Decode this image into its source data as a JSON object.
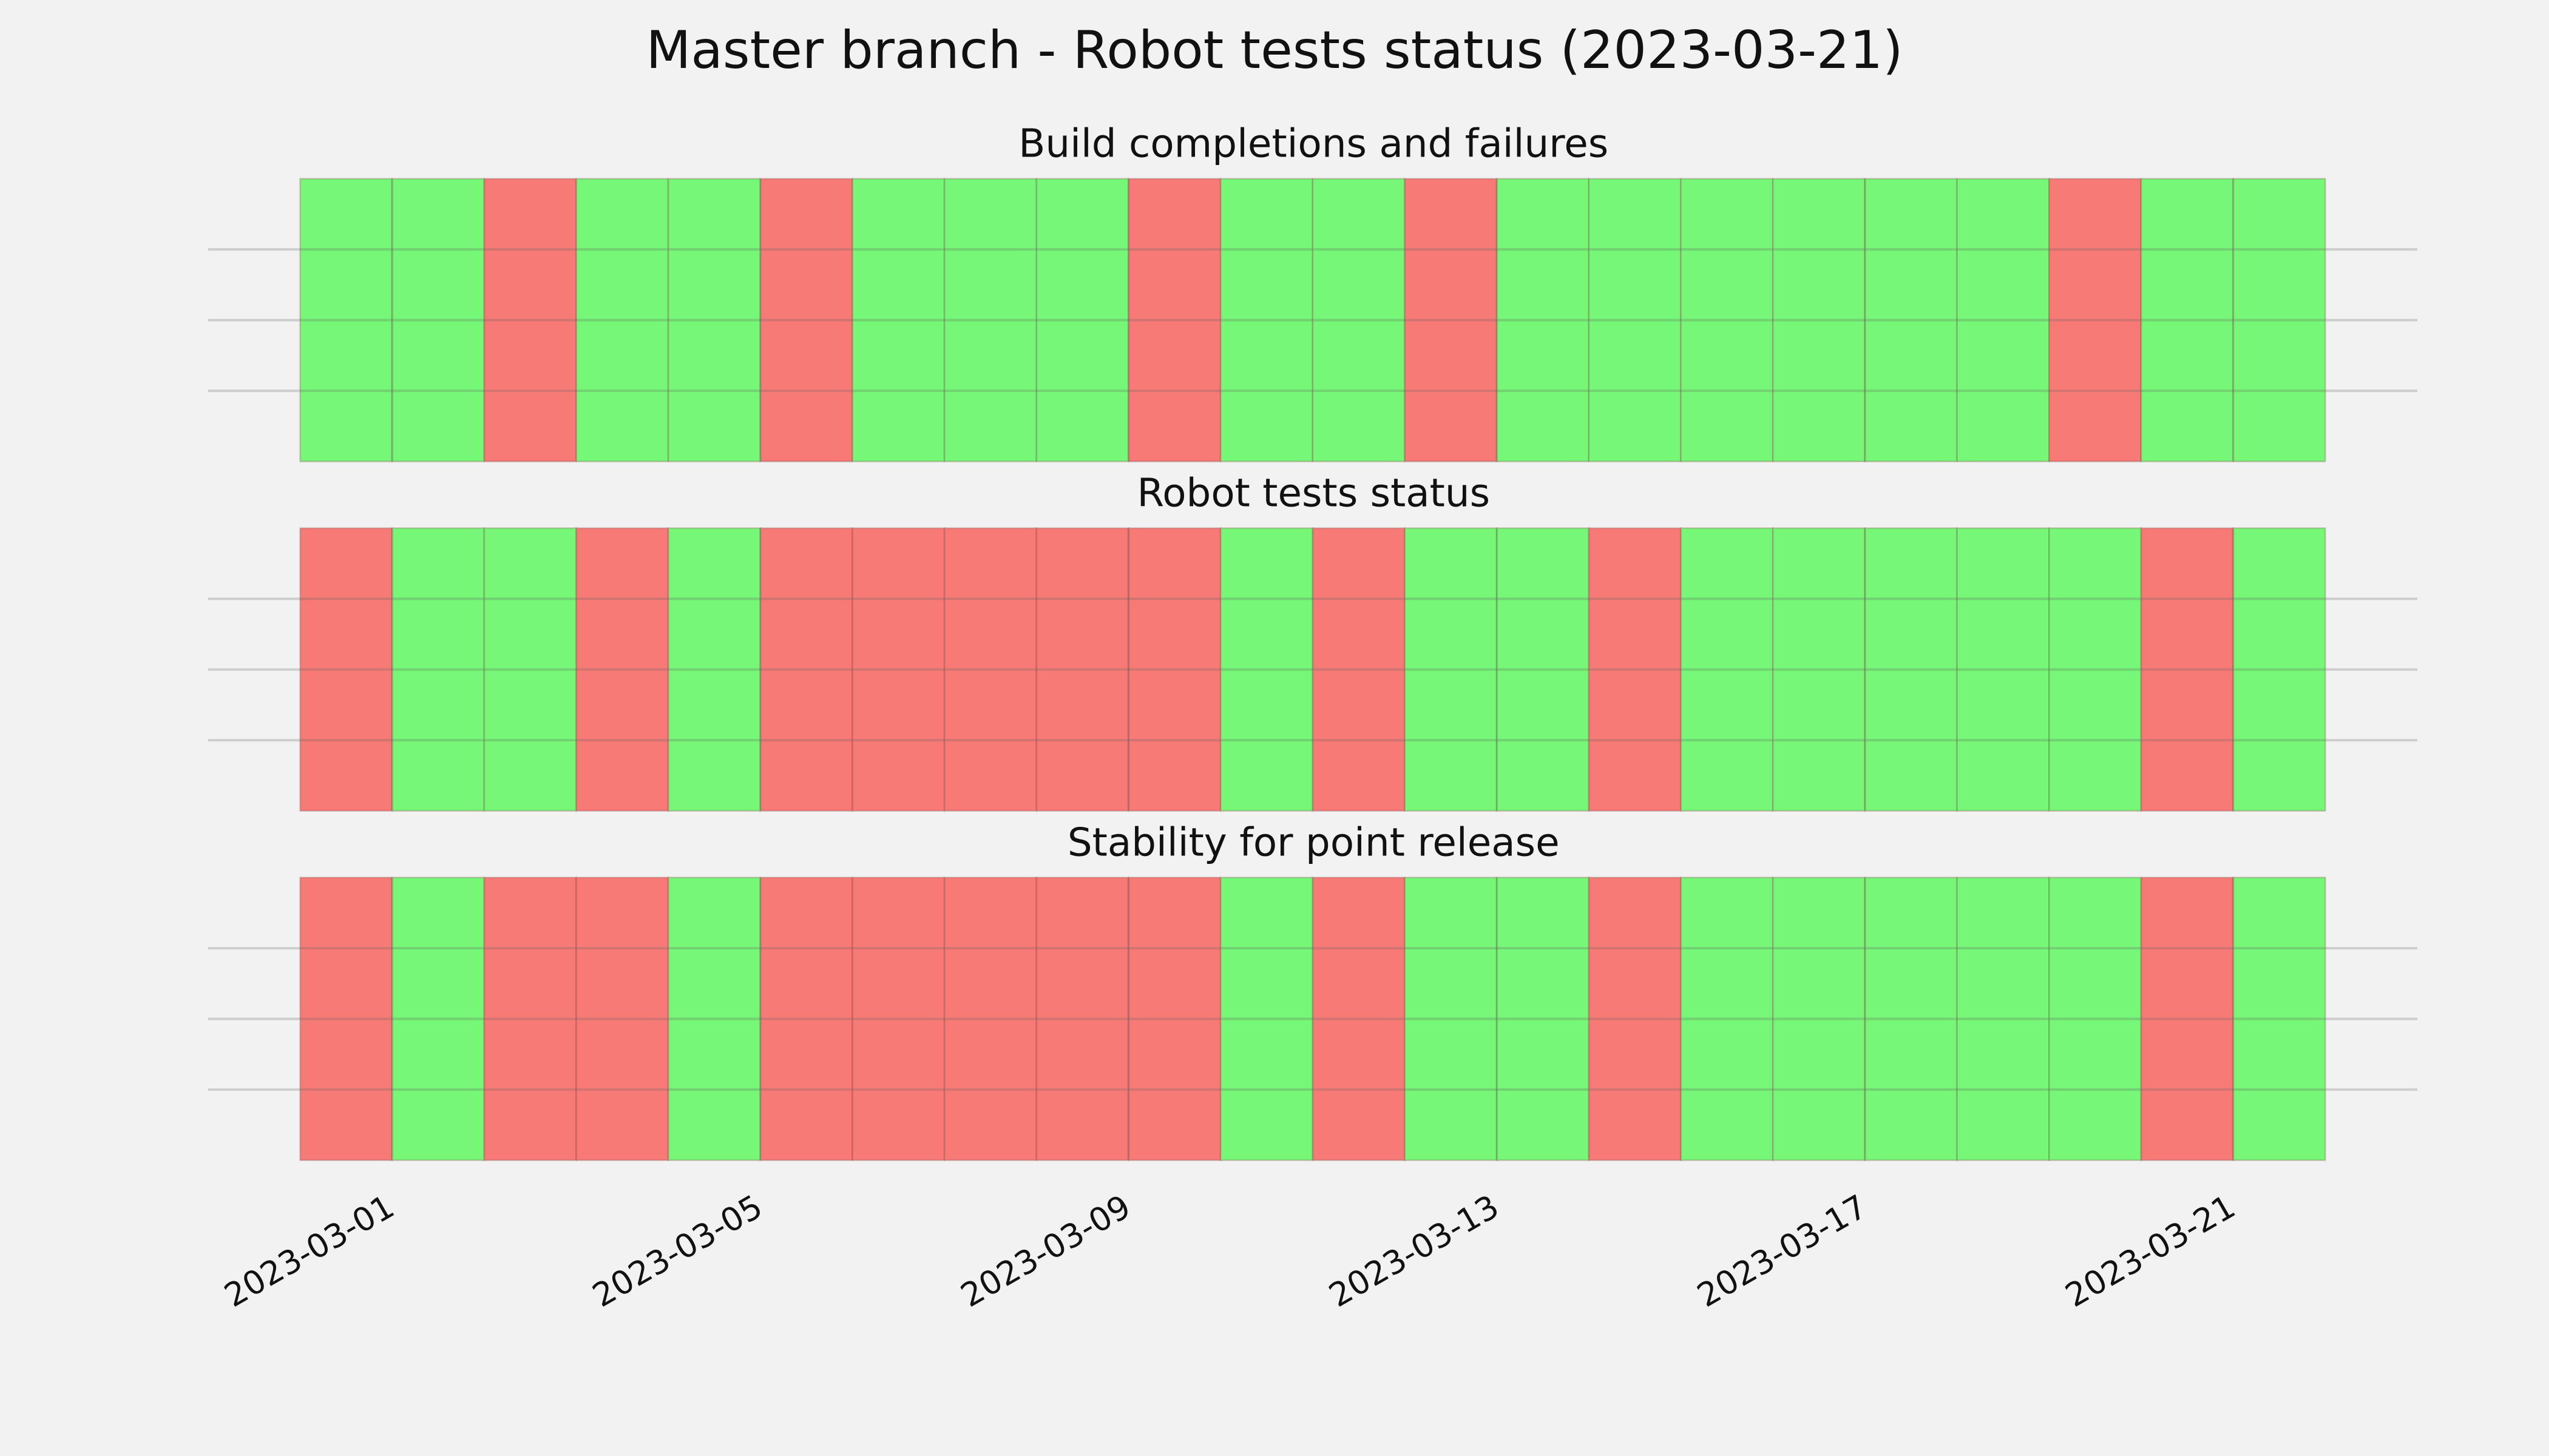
{
  "title": "Master branch - Robot tests status (2023-03-21)",
  "chart_data": [
    {
      "type": "timeline",
      "title": "Build completions and failures",
      "x": [
        "2023-02-28",
        "2023-03-01",
        "2023-03-02",
        "2023-03-03",
        "2023-03-04",
        "2023-03-05",
        "2023-03-06",
        "2023-03-07",
        "2023-03-08",
        "2023-03-09",
        "2023-03-10",
        "2023-03-11",
        "2023-03-12",
        "2023-03-13",
        "2023-03-14",
        "2023-03-15",
        "2023-03-16",
        "2023-03-17",
        "2023-03-18",
        "2023-03-19",
        "2023-03-20",
        "2023-03-21"
      ],
      "values": [
        1,
        1,
        0,
        1,
        1,
        0,
        1,
        1,
        1,
        0,
        1,
        1,
        0,
        1,
        1,
        1,
        1,
        1,
        1,
        0,
        1,
        1
      ],
      "colors": [
        "#f77a76",
        "#77f777"
      ],
      "xlim": [
        "2023-02-27",
        "2023-03-23"
      ],
      "xticks": [
        "2023-03-01",
        "2023-03-05",
        "2023-03-09",
        "2023-03-13",
        "2023-03-17",
        "2023-03-21"
      ],
      "ylim": [
        0,
        1
      ],
      "yticks": [
        0.25,
        0.5,
        0.75
      ],
      "grid": true
    },
    {
      "type": "timeline",
      "title": "Robot tests status",
      "x": [
        "2023-02-28",
        "2023-03-01",
        "2023-03-02",
        "2023-03-03",
        "2023-03-04",
        "2023-03-05",
        "2023-03-06",
        "2023-03-07",
        "2023-03-08",
        "2023-03-09",
        "2023-03-10",
        "2023-03-11",
        "2023-03-12",
        "2023-03-13",
        "2023-03-14",
        "2023-03-15",
        "2023-03-16",
        "2023-03-17",
        "2023-03-18",
        "2023-03-19",
        "2023-03-20",
        "2023-03-21"
      ],
      "values": [
        0,
        1,
        1,
        0,
        1,
        0,
        0,
        0,
        0,
        0,
        1,
        0,
        1,
        1,
        0,
        1,
        1,
        1,
        1,
        1,
        0,
        1
      ],
      "colors": [
        "#f77a76",
        "#77f777"
      ],
      "xlim": [
        "2023-02-27",
        "2023-03-23"
      ],
      "xticks": [
        "2023-03-01",
        "2023-03-05",
        "2023-03-09",
        "2023-03-13",
        "2023-03-17",
        "2023-03-21"
      ],
      "ylim": [
        0,
        1
      ],
      "yticks": [
        0.25,
        0.5,
        0.75
      ],
      "grid": true
    },
    {
      "type": "timeline",
      "title": "Stability for point release",
      "x": [
        "2023-02-28",
        "2023-03-01",
        "2023-03-02",
        "2023-03-03",
        "2023-03-04",
        "2023-03-05",
        "2023-03-06",
        "2023-03-07",
        "2023-03-08",
        "2023-03-09",
        "2023-03-10",
        "2023-03-11",
        "2023-03-12",
        "2023-03-13",
        "2023-03-14",
        "2023-03-15",
        "2023-03-16",
        "2023-03-17",
        "2023-03-18",
        "2023-03-19",
        "2023-03-20",
        "2023-03-21"
      ],
      "values": [
        0,
        1,
        0,
        0,
        1,
        0,
        0,
        0,
        0,
        0,
        1,
        0,
        1,
        1,
        0,
        1,
        1,
        1,
        1,
        1,
        0,
        1
      ],
      "colors": [
        "#f77a76",
        "#77f777"
      ],
      "xlim": [
        "2023-02-27",
        "2023-03-23"
      ],
      "xticks": [
        "2023-03-01",
        "2023-03-05",
        "2023-03-09",
        "2023-03-13",
        "2023-03-17",
        "2023-03-21"
      ],
      "ylim": [
        0,
        1
      ],
      "yticks": [
        0.25,
        0.5,
        0.75
      ],
      "grid": true
    }
  ]
}
